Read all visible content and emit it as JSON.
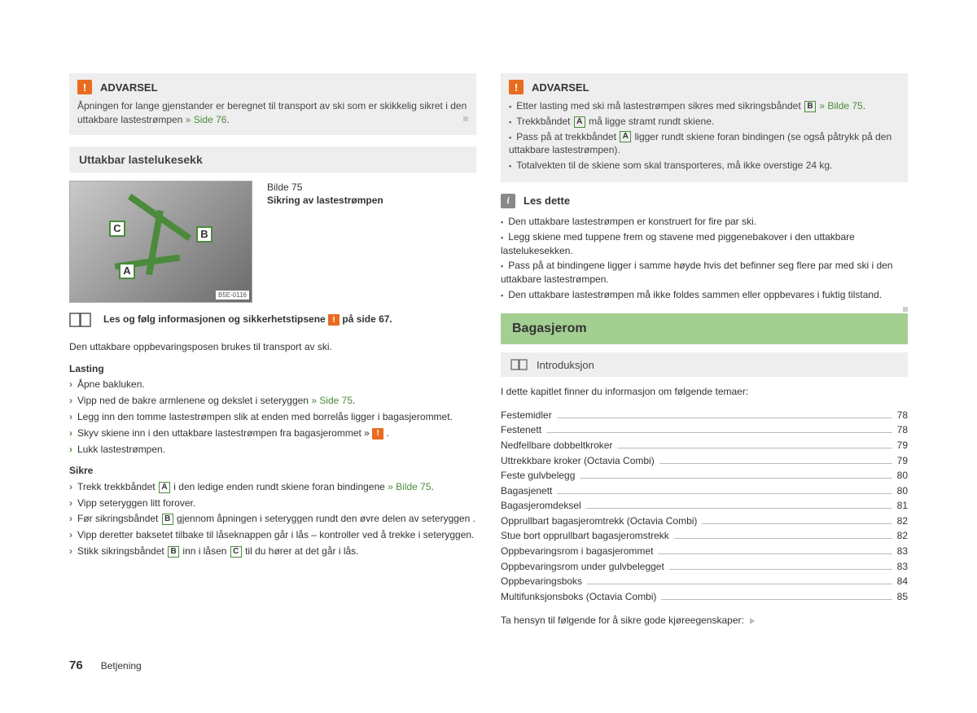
{
  "left": {
    "warning": {
      "title": "ADVARSEL",
      "body_pre": "Åpningen for lange gjenstander er beregnet til transport av ski som er skikkelig sikret i den uttakbare lastestrømpen ",
      "body_link": "» Side 76",
      "body_post": "."
    },
    "section_title": "Uttakbar lastelukesekk",
    "figure": {
      "caption_line1": "Bilde 75",
      "caption_line2": "Sikring av lastestrømpen",
      "code": "B5E-0116",
      "markers": {
        "A": "A",
        "B": "B",
        "C": "C"
      }
    },
    "readline_pre": "Les og følg informasjonen og sikkerhetstipsene ",
    "readline_post": " på side 67.",
    "intro": "Den uttakbare oppbevaringsposen brukes til transport av ski.",
    "lasting_title": "Lasting",
    "lasting": [
      "Åpne bakluken.",
      "Vipp ned de bakre armlenene og dekslet i seteryggen <span class='link'>» Side 75</span>.",
      "Legg inn den tomme lastestrømpen slik at enden med borrelås ligger i bagasjerommet.",
      "Skyv skiene inn i den uttakbare lastestrømpen fra bagasjerommet » <span class='inline-warn'>!</span> .",
      "Lukk lastestrømpen."
    ],
    "sikre_title": "Sikre",
    "sikre": [
      "Trekk trekkbåndet <span class='letter-box'>A</span> i den ledige enden rundt skiene foran bindingene <span class='link'>» Bilde 75</span>.",
      "Vipp seteryggen litt forover.",
      "Før sikringsbåndet <span class='letter-box'>B</span> gjennom åpningen i seteryggen rundt den øvre delen av seteryggen .",
      "Vipp deretter baksetet tilbake til låseknappen går i lås – kontroller ved å trekke i seteryggen.",
      "Stikk sikringsbåndet <span class='letter-box'>B</span> inn i låsen <span class='letter-box'>C</span> til du hører at det går i lås."
    ]
  },
  "right": {
    "warning": {
      "title": "ADVARSEL",
      "items": [
        "Etter lasting med ski må lastestrømpen sikres med sikringsbåndet <span class='letter-box'>B</span> <span class='link'>» Bilde 75</span>.",
        "Trekkbåndet <span class='letter-box'>A</span> må ligge stramt rundt skiene.",
        "Pass på at trekkbåndet <span class='letter-box'>A</span> ligger rundt skiene foran bindingen (se også påtrykk på den uttakbare lastestrømpen).",
        "Totalvekten til de skiene som skal transporteres, må ikke overstige 24 kg."
      ]
    },
    "info": {
      "title": "Les dette",
      "items": [
        "Den uttakbare lastestrømpen er konstruert for fire par ski.",
        "Legg skiene med tuppene frem og stavene med piggenebakover i den uttakbare lastelukesekken.",
        "Pass på at bindingene ligger i samme høyde hvis det befinner seg flere par med ski i den uttakbare lastestrømpen.",
        "Den uttakbare lastestrømpen må ikke foldes sammen eller oppbevares i fuktig tilstand."
      ]
    },
    "section_green": "Bagasjerom",
    "subheading": "Introduksjon",
    "toc_intro": "I dette kapitlet finner du informasjon om følgende temaer:",
    "toc": [
      {
        "label": "Festemidler",
        "page": "78"
      },
      {
        "label": "Festenett",
        "page": "78"
      },
      {
        "label": "Nedfellbare dobbeltkroker",
        "page": "79"
      },
      {
        "label": "Uttrekkbare kroker (Octavia Combi)",
        "page": "79"
      },
      {
        "label": "Feste gulvbelegg",
        "page": "80"
      },
      {
        "label": "Bagasjenett",
        "page": "80"
      },
      {
        "label": "Bagasjeromdeksel",
        "page": "81"
      },
      {
        "label": "Opprullbart bagasjeromtrekk (Octavia Combi)",
        "page": "82"
      },
      {
        "label": "Stue bort opprullbart bagasjeromstrekk",
        "page": "82"
      },
      {
        "label": "Oppbevaringsrom i bagasjerommet",
        "page": "83"
      },
      {
        "label": "Oppbevaringsrom under gulvbelegget",
        "page": "83"
      },
      {
        "label": "Oppbevaringsboks",
        "page": "84"
      },
      {
        "label": "Multifunksjonsboks (Octavia Combi)",
        "page": "85"
      }
    ],
    "toc_outro": "Ta hensyn til følgende for å sikre gode kjøreegenskaper:"
  },
  "footer": {
    "page_number": "76",
    "section": "Betjening"
  }
}
